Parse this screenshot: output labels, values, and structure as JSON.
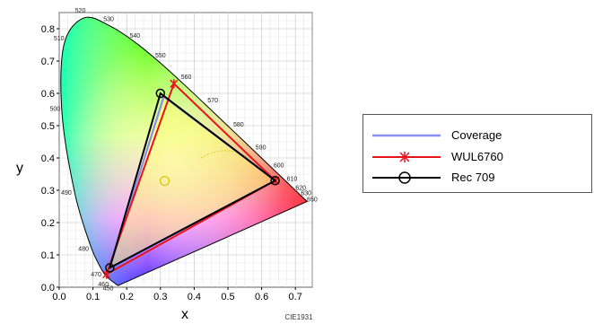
{
  "chart_data": {
    "type": "scatter",
    "title": "",
    "xlabel": "x",
    "ylabel": "y",
    "xlim": [
      0,
      0.75
    ],
    "ylim": [
      0,
      0.85
    ],
    "x_ticks": [
      "0.0",
      "0.1",
      "0.2",
      "0.3",
      "0.4",
      "0.5",
      "0.6",
      "0.7"
    ],
    "y_ticks": [
      "0.0",
      "0.1",
      "0.2",
      "0.3",
      "0.4",
      "0.5",
      "0.6",
      "0.7",
      "0.8"
    ],
    "grid": true,
    "legend_position": "right",
    "footer": "CIE1931",
    "locus": [
      [
        0.1741,
        0.005
      ],
      [
        0.144,
        0.0297
      ],
      [
        0.1241,
        0.0578
      ],
      [
        0.0913,
        0.1327
      ],
      [
        0.0454,
        0.295
      ],
      [
        0.0082,
        0.5384
      ],
      [
        0.0139,
        0.7502
      ],
      [
        0.0743,
        0.8338
      ],
      [
        0.1547,
        0.8059
      ],
      [
        0.2296,
        0.7543
      ],
      [
        0.3016,
        0.6923
      ],
      [
        0.3731,
        0.6245
      ],
      [
        0.4441,
        0.5547
      ],
      [
        0.5125,
        0.4866
      ],
      [
        0.5752,
        0.4242
      ],
      [
        0.627,
        0.3725
      ],
      [
        0.6658,
        0.334
      ],
      [
        0.6915,
        0.3083
      ],
      [
        0.7079,
        0.292
      ],
      [
        0.7347,
        0.2653
      ]
    ],
    "wavelength_labels": [
      {
        "text": "450",
        "x": 0.157,
        "y": 0.018
      },
      {
        "text": "460",
        "x": 0.144,
        "y": 0.03
      },
      {
        "text": "470",
        "x": 0.124,
        "y": 0.058
      },
      {
        "text": "480",
        "x": 0.091,
        "y": 0.133
      },
      {
        "text": "490",
        "x": 0.045,
        "y": 0.295
      },
      {
        "text": "500",
        "x": 0.008,
        "y": 0.538
      },
      {
        "text": "510",
        "x": 0.014,
        "y": 0.75
      },
      {
        "text": "520",
        "x": 0.074,
        "y": 0.834
      },
      {
        "text": "530",
        "x": 0.155,
        "y": 0.806
      },
      {
        "text": "540",
        "x": 0.23,
        "y": 0.754
      },
      {
        "text": "550",
        "x": 0.302,
        "y": 0.692
      },
      {
        "text": "560",
        "x": 0.373,
        "y": 0.625
      },
      {
        "text": "570",
        "x": 0.444,
        "y": 0.555
      },
      {
        "text": "580",
        "x": 0.513,
        "y": 0.487
      },
      {
        "text": "590",
        "x": 0.575,
        "y": 0.424
      },
      {
        "text": "600",
        "x": 0.627,
        "y": 0.373
      },
      {
        "text": "610",
        "x": 0.666,
        "y": 0.334
      },
      {
        "text": "620",
        "x": 0.692,
        "y": 0.308
      },
      {
        "text": "630",
        "x": 0.708,
        "y": 0.292
      },
      {
        "text": "650",
        "x": 0.726,
        "y": 0.274
      }
    ],
    "series": [
      {
        "name": "Coverage",
        "color": "#8a8ef0",
        "marker": "none",
        "points": [
          [
            0.15,
            0.06
          ],
          [
            0.31,
            0.59
          ],
          [
            0.64,
            0.33
          ]
        ]
      },
      {
        "name": "WUL6760",
        "color": "#e8141b",
        "marker": "asterisk",
        "points": [
          [
            0.14,
            0.04
          ],
          [
            0.34,
            0.63
          ],
          [
            0.64,
            0.33
          ]
        ]
      },
      {
        "name": "Rec 709",
        "color": "#000000",
        "marker": "circle",
        "points": [
          [
            0.15,
            0.06
          ],
          [
            0.3,
            0.6
          ],
          [
            0.64,
            0.33
          ]
        ]
      }
    ],
    "white_point": {
      "x": 0.3127,
      "y": 0.329
    }
  }
}
